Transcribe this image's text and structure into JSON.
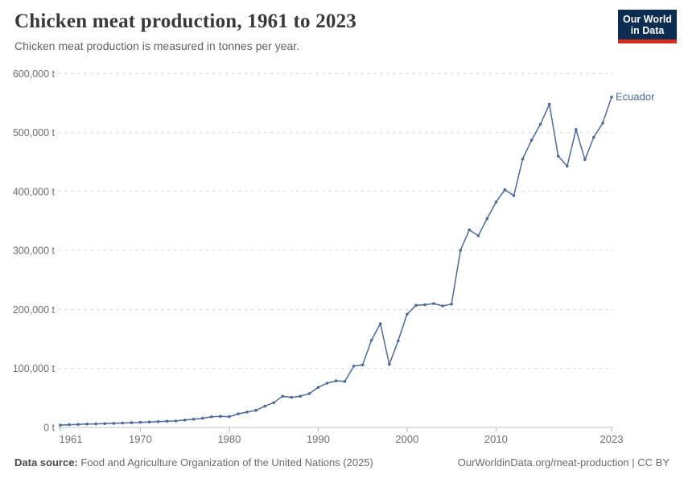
{
  "header": {
    "title": "Chicken meat production, 1961 to 2023",
    "subtitle": "Chicken meat production is measured in tonnes per year.",
    "logo": {
      "line1": "Our World",
      "line2": "in Data",
      "bg_color": "#0c2c52",
      "accent_color": "#d22e21"
    }
  },
  "chart_data": {
    "type": "line",
    "title": "Chicken meat production, 1961 to 2023",
    "subtitle": "Chicken meat production is measured in tonnes per year.",
    "xlabel": "",
    "ylabel": "",
    "unit_suffix": " t",
    "xlim": [
      1961,
      2023
    ],
    "ylim": [
      0,
      600000
    ],
    "x_ticks": [
      1961,
      1970,
      1980,
      1990,
      2000,
      2010,
      2023
    ],
    "y_ticks": [
      0,
      100000,
      200000,
      300000,
      400000,
      500000,
      600000
    ],
    "grid": "horizontal-dashed",
    "legend_position": "end-of-line-label",
    "entity_label": "Ecuador",
    "line_color": "#4C6A9C",
    "grid_color": "#dcdcdc",
    "axis_color": "#c4c4c4",
    "tick_label_color": "#6e6e6e",
    "years": [
      1961,
      1962,
      1963,
      1964,
      1965,
      1966,
      1967,
      1968,
      1969,
      1970,
      1971,
      1972,
      1973,
      1974,
      1975,
      1976,
      1977,
      1978,
      1979,
      1980,
      1981,
      1982,
      1983,
      1984,
      1985,
      1986,
      1987,
      1988,
      1989,
      1990,
      1991,
      1992,
      1993,
      1994,
      1995,
      1996,
      1997,
      1998,
      1999,
      2000,
      2001,
      2002,
      2003,
      2004,
      2005,
      2006,
      2007,
      2008,
      2009,
      2010,
      2011,
      2012,
      2013,
      2014,
      2015,
      2016,
      2017,
      2018,
      2019,
      2020,
      2021,
      2022,
      2023
    ],
    "series": [
      {
        "name": "Ecuador",
        "color": "#4C6A9C",
        "values": [
          4000,
          4600,
          5200,
          5800,
          6000,
          6500,
          7000,
          7500,
          8000,
          8800,
          9300,
          9800,
          10600,
          11000,
          12500,
          14000,
          15500,
          18000,
          18800,
          18300,
          23000,
          26000,
          29000,
          36000,
          42000,
          53000,
          51000,
          53000,
          57500,
          68000,
          75000,
          79000,
          78000,
          104000,
          106000,
          148000,
          176000,
          107000,
          147000,
          192000,
          207000,
          208000,
          210000,
          206000,
          209000,
          300000,
          335000,
          325000,
          354000,
          382000,
          403000,
          393000,
          455000,
          487000,
          514000,
          548000,
          460000,
          443000,
          505000,
          454000,
          492000,
          516000,
          560000
        ]
      }
    ]
  },
  "footer": {
    "datasource_label": "Data source:",
    "datasource_text": "Food and Agriculture Organization of the United Nations (2025)",
    "link_text": "OurWorldinData.org/meat-production | CC BY"
  }
}
